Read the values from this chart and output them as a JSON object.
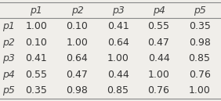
{
  "columns": [
    "",
    "p1",
    "p2",
    "p3",
    "p4",
    "p5"
  ],
  "rows": [
    [
      "p1",
      "1.00",
      "0.10",
      "0.41",
      "0.55",
      "0.35"
    ],
    [
      "p2",
      "0.10",
      "1.00",
      "0.64",
      "0.47",
      "0.98"
    ],
    [
      "p3",
      "0.41",
      "0.64",
      "1.00",
      "0.44",
      "0.85"
    ],
    [
      "p4",
      "0.55",
      "0.47",
      "0.44",
      "1.00",
      "0.76"
    ],
    [
      "p5",
      "0.35",
      "0.98",
      "0.85",
      "0.76",
      "1.00"
    ]
  ],
  "background_color": "#f0eeea",
  "cell_fontsize": 9,
  "line_color": "#888888",
  "line_lw": 0.8
}
